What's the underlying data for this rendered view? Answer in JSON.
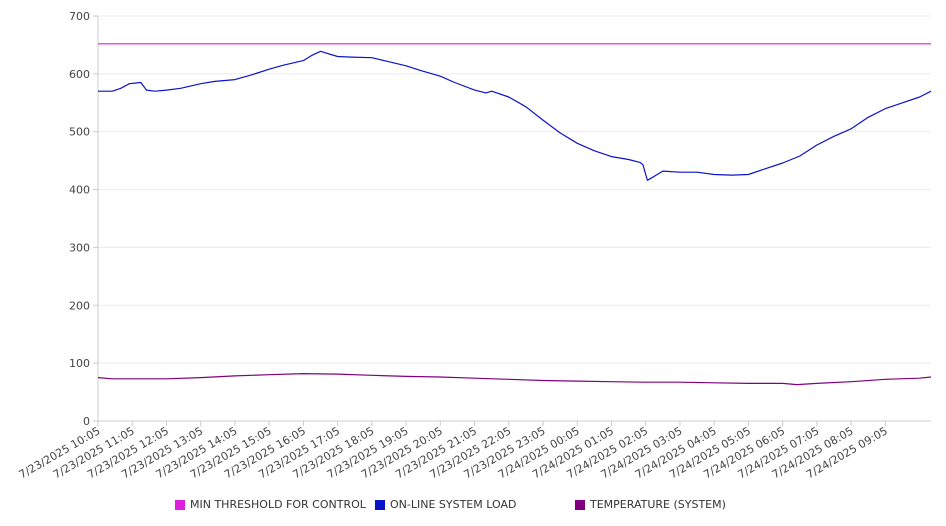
{
  "chart_data": {
    "type": "line",
    "title": "",
    "xlabel": "",
    "ylabel": "",
    "ylim": [
      0,
      700
    ],
    "yticks": [
      0,
      100,
      200,
      300,
      400,
      500,
      600,
      700
    ],
    "xlim": [
      "7/23/2025 10:05",
      "7/24/2025 10:25"
    ],
    "x_tick_labels": [
      "7/23/2025 10:05",
      "7/23/2025 11:05",
      "7/23/2025 12:05",
      "7/23/2025 13:05",
      "7/23/2025 14:05",
      "7/23/2025 15:05",
      "7/23/2025 16:05",
      "7/23/2025 17:05",
      "7/23/2025 18:05",
      "7/23/2025 19:05",
      "7/23/2025 20:05",
      "7/23/2025 21:05",
      "7/23/2025 22:05",
      "7/23/2025 23:05",
      "7/24/2025 00:05",
      "7/24/2025 01:05",
      "7/24/2025 02:05",
      "7/24/2025 03:05",
      "7/24/2025 04:05",
      "7/24/2025 05:05",
      "7/24/2025 06:05",
      "7/24/2025 07:05",
      "7/24/2025 08:05",
      "7/24/2025 09:05"
    ],
    "grid": true,
    "legend_position": "bottom",
    "series": [
      {
        "name": "MIN THRESHOLD FOR CONTROL",
        "color": "#e01ee0",
        "x": [
          "7/23/2025 10:05",
          "7/24/2025 10:25"
        ],
        "y": [
          652,
          652
        ]
      },
      {
        "name": "ON-LINE SYSTEM LOAD",
        "color": "#0a14c8",
        "x": [
          "7/23/2025 10:05",
          "7/23/2025 10:30",
          "7/23/2025 10:45",
          "7/23/2025 11:00",
          "7/23/2025 11:20",
          "7/23/2025 11:30",
          "7/23/2025 11:45",
          "7/23/2025 12:05",
          "7/23/2025 12:30",
          "7/23/2025 13:05",
          "7/23/2025 13:30",
          "7/23/2025 14:05",
          "7/23/2025 14:30",
          "7/23/2025 15:05",
          "7/23/2025 15:30",
          "7/23/2025 16:05",
          "7/23/2025 16:20",
          "7/23/2025 16:35",
          "7/23/2025 17:05",
          "7/23/2025 17:30",
          "7/23/2025 18:05",
          "7/23/2025 18:30",
          "7/23/2025 19:05",
          "7/23/2025 19:30",
          "7/23/2025 20:05",
          "7/23/2025 20:30",
          "7/23/2025 21:05",
          "7/23/2025 21:25",
          "7/23/2025 21:35",
          "7/23/2025 22:05",
          "7/23/2025 22:35",
          "7/23/2025 23:05",
          "7/23/2025 23:35",
          "7/24/2025 00:05",
          "7/24/2025 00:35",
          "7/24/2025 01:05",
          "7/24/2025 01:35",
          "7/24/2025 01:55",
          "7/24/2025 02:00",
          "7/24/2025 02:08",
          "7/24/2025 02:20",
          "7/24/2025 02:35",
          "7/24/2025 03:05",
          "7/24/2025 03:35",
          "7/24/2025 04:05",
          "7/24/2025 04:35",
          "7/24/2025 05:05",
          "7/24/2025 05:35",
          "7/24/2025 06:05",
          "7/24/2025 06:35",
          "7/24/2025 07:05",
          "7/24/2025 07:35",
          "7/24/2025 08:05",
          "7/24/2025 08:35",
          "7/24/2025 09:05",
          "7/24/2025 09:35",
          "7/24/2025 10:05",
          "7/24/2025 10:25"
        ],
        "y": [
          570,
          570,
          575,
          583,
          585,
          572,
          570,
          572,
          575,
          583,
          587,
          590,
          597,
          608,
          615,
          623,
          632,
          639,
          630,
          629,
          628,
          622,
          614,
          606,
          596,
          585,
          572,
          567,
          570,
          560,
          543,
          520,
          498,
          480,
          467,
          457,
          452,
          447,
          443,
          416,
          423,
          432,
          430,
          430,
          426,
          425,
          426,
          436,
          446,
          458,
          477,
          492,
          505,
          525,
          540,
          550,
          560,
          570
        ]
      },
      {
        "name": "TEMPERATURE (SYSTEM)",
        "color": "#800080",
        "x": [
          "7/23/2025 10:05",
          "7/23/2025 10:30",
          "7/23/2025 12:05",
          "7/23/2025 13:05",
          "7/23/2025 14:05",
          "7/23/2025 15:05",
          "7/23/2025 16:05",
          "7/23/2025 17:05",
          "7/23/2025 18:05",
          "7/23/2025 19:05",
          "7/23/2025 20:05",
          "7/23/2025 21:05",
          "7/23/2025 22:05",
          "7/23/2025 23:05",
          "7/24/2025 00:05",
          "7/24/2025 01:05",
          "7/24/2025 02:05",
          "7/24/2025 03:05",
          "7/24/2025 04:05",
          "7/24/2025 05:05",
          "7/24/2025 06:05",
          "7/24/2025 06:30",
          "7/24/2025 07:05",
          "7/24/2025 08:05",
          "7/24/2025 09:05",
          "7/24/2025 10:05",
          "7/24/2025 10:25"
        ],
        "y": [
          75,
          73,
          73,
          75,
          78,
          80,
          82,
          81,
          79,
          77,
          76,
          74,
          72,
          70,
          69,
          68,
          67,
          67,
          66,
          65,
          65,
          63,
          65,
          68,
          72,
          74,
          76
        ]
      }
    ]
  }
}
